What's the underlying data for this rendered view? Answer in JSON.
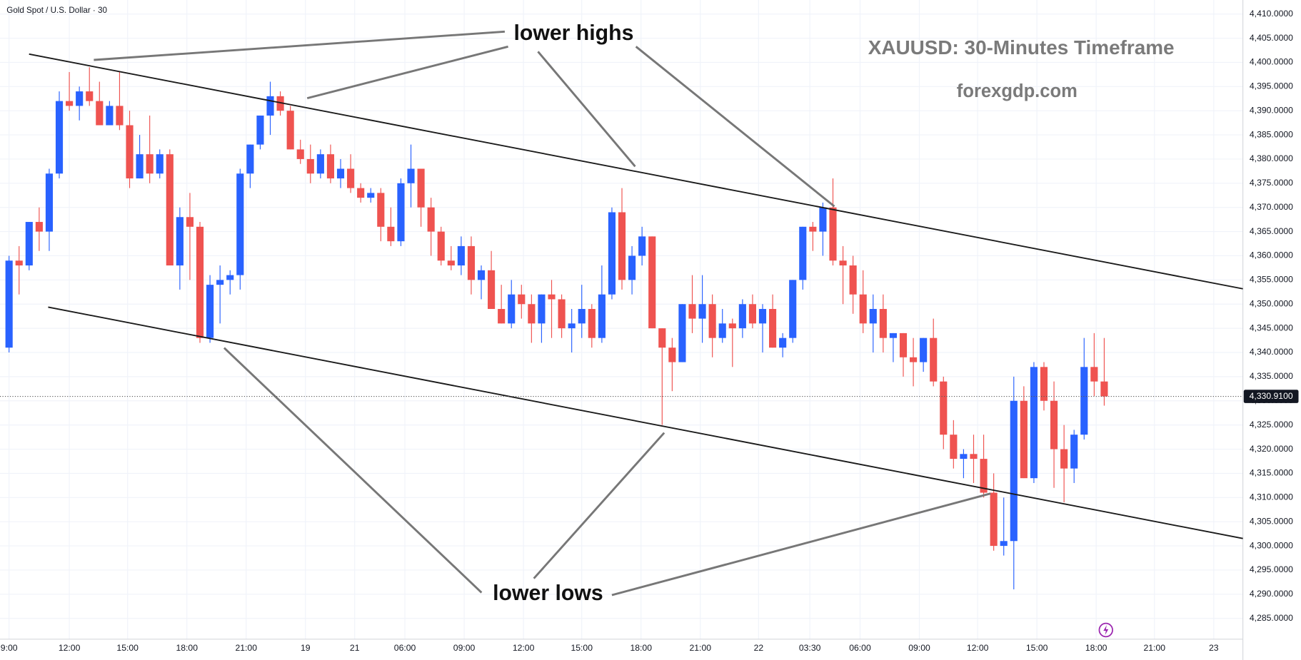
{
  "chart_data": {
    "type": "candlestick",
    "title": "Gold Spot / U.S. Dollar · 30",
    "annotations": {
      "highs": "lower highs",
      "lows": "lower lows",
      "heading": "XAUUSD: 30-Minutes Timeframe",
      "site": "forexgdp.com"
    },
    "up_color": "#2962ff",
    "down_color": "#ef5350",
    "last_price_label": "4,330.9100",
    "xlim": [
      -0.9,
      122.8
    ],
    "xticks": [
      {
        "value": 0,
        "label": "9:00"
      },
      {
        "value": 6,
        "label": "12:00"
      },
      {
        "value": 11.8,
        "label": "15:00"
      },
      {
        "value": 17.7,
        "label": "18:00"
      },
      {
        "value": 23.6,
        "label": "21:00"
      },
      {
        "value": 29.5,
        "label": "19"
      },
      {
        "value": 34.4,
        "label": "21"
      },
      {
        "value": 39.4,
        "label": "06:00"
      },
      {
        "value": 45.3,
        "label": "09:00"
      },
      {
        "value": 51.2,
        "label": "12:00"
      },
      {
        "value": 57,
        "label": "15:00"
      },
      {
        "value": 62.9,
        "label": "18:00"
      },
      {
        "value": 68.8,
        "label": "21:00"
      },
      {
        "value": 74.6,
        "label": "22"
      },
      {
        "value": 79.7,
        "label": "03:30"
      },
      {
        "value": 84.7,
        "label": "06:00"
      },
      {
        "value": 90.6,
        "label": "09:00"
      },
      {
        "value": 96.4,
        "label": "12:00"
      },
      {
        "value": 102.3,
        "label": "15:00"
      },
      {
        "value": 108.2,
        "label": "18:00"
      },
      {
        "value": 114,
        "label": "21:00"
      },
      {
        "value": 119.9,
        "label": "23"
      }
    ],
    "ylim": [
      4280.7,
      4412.9
    ],
    "yticks": [
      {
        "value": 4285,
        "label": "4,285.0000"
      },
      {
        "value": 4290,
        "label": "4,290.0000"
      },
      {
        "value": 4295,
        "label": "4,295.0000"
      },
      {
        "value": 4300,
        "label": "4,300.0000"
      },
      {
        "value": 4305,
        "label": "4,305.0000"
      },
      {
        "value": 4310,
        "label": "4,310.0000"
      },
      {
        "value": 4315,
        "label": "4,315.0000"
      },
      {
        "value": 4320,
        "label": "4,320.0000"
      },
      {
        "value": 4325,
        "label": "4,325.0000"
      },
      {
        "value": 4330,
        "label": "4,330.0000"
      },
      {
        "value": 4335,
        "label": "4,335.0000"
      },
      {
        "value": 4340,
        "label": "4,340.0000"
      },
      {
        "value": 4345,
        "label": "4,345.0000"
      },
      {
        "value": 4350,
        "label": "4,350.0000"
      },
      {
        "value": 4355,
        "label": "4,355.0000"
      },
      {
        "value": 4360,
        "label": "4,360.0000"
      },
      {
        "value": 4365,
        "label": "4,365.0000"
      },
      {
        "value": 4370,
        "label": "4,370.0000"
      },
      {
        "value": 4375,
        "label": "4,375.0000"
      },
      {
        "value": 4380,
        "label": "4,380.0000"
      },
      {
        "value": 4385,
        "label": "4,385.0000"
      },
      {
        "value": 4390,
        "label": "4,390.0000"
      },
      {
        "value": 4395,
        "label": "4,395.0000"
      },
      {
        "value": 4400,
        "label": "4,400.0000"
      },
      {
        "value": 4405,
        "label": "4,405.0000"
      },
      {
        "value": 4410,
        "label": "4,410.0000"
      }
    ],
    "open": [
      4341,
      4359,
      4358,
      4367,
      4365,
      4377,
      4392,
      4391,
      4394,
      4392,
      4387,
      4391,
      4387,
      4376,
      4381,
      4377,
      4381,
      4358,
      4368,
      4366,
      4343,
      4354,
      4355,
      4356,
      4377,
      4383,
      4389,
      4393,
      4390,
      4382,
      4380,
      4377,
      4381,
      4376,
      4378,
      4374,
      4372,
      4373,
      4366,
      4363,
      4375,
      4378,
      4370,
      4365,
      4359,
      4358,
      4362,
      4355,
      4357,
      4349,
      4346,
      4352,
      4350,
      4346,
      4352,
      4351,
      4345,
      4346,
      4349,
      4343,
      4352,
      4369,
      4355,
      4360,
      4364,
      4345,
      4341,
      4338,
      4350,
      4347,
      4350,
      4343,
      4346,
      4345,
      4350,
      4346,
      4349,
      4341,
      4343,
      4355,
      4366,
      4365,
      4370,
      4359,
      4358,
      4352,
      4346,
      4349,
      4343,
      4344,
      4339,
      4338,
      4343,
      4334,
      4323,
      4318,
      4319,
      4318,
      4311,
      4300,
      4301,
      4330,
      4314,
      4337,
      4330,
      4320,
      4316,
      4323,
      4337,
      4334
    ],
    "high": [
      4360,
      4362,
      4367,
      4370,
      4378,
      4394,
      4398,
      4395,
      4399,
      4396,
      4392,
      4398,
      4390,
      4385,
      4389,
      4382,
      4382,
      4370,
      4373,
      4367,
      4356,
      4358,
      4357,
      4378,
      4383,
      4389,
      4396,
      4394,
      4391,
      4384,
      4383,
      4382,
      4383,
      4380,
      4381,
      4375,
      4374,
      4374,
      4370,
      4376,
      4383,
      4378,
      4372,
      4366,
      4362,
      4364,
      4364,
      4358,
      4361,
      4354,
      4355,
      4354,
      4352,
      4352,
      4355,
      4352,
      4349,
      4354,
      4350,
      4358,
      4370,
      4374,
      4362,
      4366,
      4364,
      4345,
      4343,
      4350,
      4356,
      4356,
      4352,
      4349,
      4347,
      4351,
      4352,
      4350,
      4352,
      4344,
      4355,
      4366,
      4367,
      4371,
      4376,
      4362,
      4360,
      4357,
      4352,
      4352,
      4344,
      4344,
      4343,
      4343,
      4347,
      4335,
      4326,
      4320,
      4323,
      4323,
      4315,
      4310,
      4335,
      4333,
      4338,
      4338,
      4334,
      4325,
      4324,
      4343,
      4344,
      4343
    ],
    "low": [
      4340,
      4352,
      4357,
      4361,
      4361,
      4376,
      4390,
      4388,
      4391,
      4387,
      4387,
      4386,
      4374,
      4376,
      4375,
      4376,
      4358,
      4353,
      4355,
      4342,
      4342,
      4346,
      4352,
      4353,
      4374,
      4382,
      4385,
      4389,
      4382,
      4379,
      4375,
      4376,
      4375,
      4374,
      4373,
      4371,
      4371,
      4363,
      4362,
      4362,
      4370,
      4366,
      4360,
      4358,
      4357,
      4356,
      4352,
      4351,
      4349,
      4346,
      4345,
      4347,
      4342,
      4342,
      4343,
      4343,
      4340,
      4343,
      4341,
      4342,
      4351,
      4353,
      4352,
      4358,
      4345,
      4325,
      4332,
      4338,
      4344,
      4342,
      4339,
      4342,
      4337,
      4343,
      4345,
      4340,
      4341,
      4339,
      4342,
      4353,
      4361,
      4360,
      4358,
      4350,
      4348,
      4344,
      4340,
      4340,
      4338,
      4335,
      4333,
      4336,
      4333,
      4320,
      4316,
      4314,
      4313,
      4310,
      4299,
      4298,
      4291,
      4314,
      4313,
      4328,
      4312,
      4309,
      4313,
      4322,
      4331,
      4329
    ],
    "close": [
      4359,
      4358,
      4367,
      4365,
      4377,
      4392,
      4391,
      4394,
      4392,
      4387,
      4391,
      4387,
      4376,
      4381,
      4377,
      4381,
      4358,
      4368,
      4366,
      4343,
      4354,
      4355,
      4356,
      4377,
      4383,
      4389,
      4393,
      4390,
      4382,
      4380,
      4377,
      4381,
      4376,
      4378,
      4374,
      4372,
      4373,
      4366,
      4363,
      4375,
      4378,
      4370,
      4365,
      4359,
      4358,
      4362,
      4355,
      4357,
      4349,
      4346,
      4352,
      4350,
      4346,
      4352,
      4351,
      4345,
      4346,
      4349,
      4343,
      4352,
      4369,
      4355,
      4360,
      4364,
      4345,
      4341,
      4338,
      4350,
      4347,
      4350,
      4343,
      4346,
      4345,
      4350,
      4346,
      4349,
      4341,
      4343,
      4355,
      4366,
      4365,
      4370,
      4359,
      4358,
      4352,
      4346,
      4349,
      4343,
      4344,
      4339,
      4338,
      4343,
      4334,
      4323,
      4318,
      4319,
      4318,
      4311,
      4300,
      4301,
      4330,
      4314,
      4337,
      4330,
      4320,
      4316,
      4323,
      4337,
      4334,
      4330.91
    ]
  }
}
